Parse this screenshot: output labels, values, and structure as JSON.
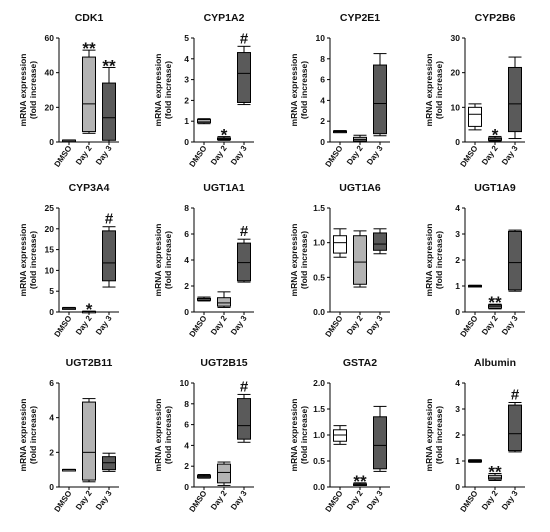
{
  "chart_data": [
    {
      "type": "box",
      "title": "CDK1",
      "ylabel": "mRNA expression\n(fold increase)",
      "categories": [
        "DMSO",
        "Day 2",
        "Day 3"
      ],
      "ylim": [
        0,
        60
      ],
      "yticks": [
        0,
        20,
        40,
        60
      ],
      "boxes": [
        {
          "min": 0.7,
          "q1": 0.8,
          "median": 1,
          "q3": 1.1,
          "max": 1.2
        },
        {
          "min": 5,
          "q1": 6,
          "median": 22,
          "q3": 49,
          "max": 53
        },
        {
          "min": 0,
          "q1": 1,
          "median": 14,
          "q3": 34,
          "max": 43
        }
      ],
      "fills": [
        "#ffffff",
        "#b3b3b3",
        "#5a5a5a"
      ],
      "annotations": [
        "",
        "**",
        "**"
      ]
    },
    {
      "type": "box",
      "title": "CYP1A2",
      "ylabel": "mRNA expression\n(fold increase)",
      "categories": [
        "DMSO",
        "Day 2",
        "Day 3"
      ],
      "ylim": [
        0,
        5
      ],
      "yticks": [
        0,
        1,
        2,
        3,
        4,
        5
      ],
      "boxes": [
        {
          "min": 0.88,
          "q1": 0.93,
          "median": 1.0,
          "q3": 1.08,
          "max": 1.12
        },
        {
          "min": 0.08,
          "q1": 0.12,
          "median": 0.16,
          "q3": 0.2,
          "max": 0.26
        },
        {
          "min": 1.8,
          "q1": 1.9,
          "median": 3.3,
          "q3": 4.3,
          "max": 4.6
        }
      ],
      "fills": [
        "#ffffff",
        "#b3b3b3",
        "#5a5a5a"
      ],
      "annotations": [
        "",
        "*",
        "#"
      ]
    },
    {
      "type": "box",
      "title": "CYP2E1",
      "ylabel": "mRNA expression\n(fold increase)",
      "categories": [
        "DMSO",
        "Day 2",
        "Day 3"
      ],
      "ylim": [
        0,
        10
      ],
      "yticks": [
        0,
        2,
        4,
        6,
        8,
        10
      ],
      "boxes": [
        {
          "min": 0.9,
          "q1": 0.95,
          "median": 1.0,
          "q3": 1.05,
          "max": 1.1
        },
        {
          "min": 0.05,
          "q1": 0.1,
          "median": 0.25,
          "q3": 0.45,
          "max": 0.65
        },
        {
          "min": 0.6,
          "q1": 0.8,
          "median": 3.7,
          "q3": 7.4,
          "max": 8.5
        }
      ],
      "fills": [
        "#ffffff",
        "#b3b3b3",
        "#5a5a5a"
      ],
      "annotations": [
        "",
        "",
        ""
      ]
    },
    {
      "type": "box",
      "title": "CYP2B6",
      "ylabel": "mRNA expression\n(fold increase)",
      "categories": [
        "DMSO",
        "Day 2",
        "Day 3"
      ],
      "ylim": [
        0,
        30
      ],
      "yticks": [
        0,
        10,
        20,
        30
      ],
      "boxes": [
        {
          "min": 3.5,
          "q1": 4.5,
          "median": 8,
          "q3": 10,
          "max": 11
        },
        {
          "min": 0.3,
          "q1": 0.5,
          "median": 0.9,
          "q3": 1.2,
          "max": 1.6
        },
        {
          "min": 1,
          "q1": 3,
          "median": 11,
          "q3": 21.5,
          "max": 24.5
        }
      ],
      "fills": [
        "#ffffff",
        "#b3b3b3",
        "#5a5a5a"
      ],
      "annotations": [
        "",
        "*",
        ""
      ]
    },
    {
      "type": "box",
      "title": "CYP3A4",
      "ylabel": "mRNA expression\n(fold increase)",
      "categories": [
        "DMSO",
        "Day 2",
        "Day 3"
      ],
      "ylim": [
        0,
        25
      ],
      "yticks": [
        0,
        5,
        10,
        15,
        20,
        25
      ],
      "boxes": [
        {
          "min": 0.7,
          "q1": 0.8,
          "median": 0.9,
          "q3": 1.0,
          "max": 1.1
        },
        {
          "min": 0.05,
          "q1": 0.08,
          "median": 0.12,
          "q3": 0.16,
          "max": 0.2
        },
        {
          "min": 6,
          "q1": 7.5,
          "median": 11.8,
          "q3": 19.5,
          "max": 20.5
        }
      ],
      "fills": [
        "#ffffff",
        "#b3b3b3",
        "#5a5a5a"
      ],
      "annotations": [
        "",
        "*",
        "#"
      ]
    },
    {
      "type": "box",
      "title": "UGT1A1",
      "ylabel": "mRNA expression\n(fold increase)",
      "categories": [
        "DMSO",
        "Day 2",
        "Day 3"
      ],
      "ylim": [
        0,
        8
      ],
      "yticks": [
        0,
        2,
        4,
        6,
        8
      ],
      "boxes": [
        {
          "min": 0.85,
          "q1": 0.9,
          "median": 1.0,
          "q3": 1.05,
          "max": 1.15
        },
        {
          "min": 0.35,
          "q1": 0.45,
          "median": 0.7,
          "q3": 1.1,
          "max": 1.55
        },
        {
          "min": 2.3,
          "q1": 2.4,
          "median": 3.8,
          "q3": 5.3,
          "max": 5.6
        }
      ],
      "fills": [
        "#ffffff",
        "#b3b3b3",
        "#5a5a5a"
      ],
      "annotations": [
        "",
        "",
        "#"
      ]
    },
    {
      "type": "box",
      "title": "UGT1A6",
      "ylabel": "mRNA expression\n(fold increase)",
      "categories": [
        "DMSO",
        "Day 2",
        "Day 3"
      ],
      "ylim": [
        0,
        1.5
      ],
      "yticks": [
        0.0,
        0.5,
        1.0,
        1.5
      ],
      "boxes": [
        {
          "min": 0.79,
          "q1": 0.85,
          "median": 1.0,
          "q3": 1.1,
          "max": 1.2
        },
        {
          "min": 0.36,
          "q1": 0.4,
          "median": 0.72,
          "q3": 1.1,
          "max": 1.17
        },
        {
          "min": 0.84,
          "q1": 0.89,
          "median": 0.98,
          "q3": 1.14,
          "max": 1.2
        }
      ],
      "fills": [
        "#ffffff",
        "#b3b3b3",
        "#5a5a5a"
      ],
      "annotations": [
        "",
        "",
        ""
      ]
    },
    {
      "type": "box",
      "title": "UGT1A9",
      "ylabel": "mRNA expression\n(fold increase)",
      "categories": [
        "DMSO",
        "Day 2",
        "Day 3"
      ],
      "ylim": [
        0,
        4
      ],
      "yticks": [
        0,
        1,
        2,
        3,
        4
      ],
      "boxes": [
        {
          "min": 0.97,
          "q1": 0.98,
          "median": 1.0,
          "q3": 1.02,
          "max": 1.03
        },
        {
          "min": 0.12,
          "q1": 0.15,
          "median": 0.22,
          "q3": 0.27,
          "max": 0.3
        },
        {
          "min": 0.8,
          "q1": 0.85,
          "median": 1.9,
          "q3": 3.1,
          "max": 3.15
        }
      ],
      "fills": [
        "#ffffff",
        "#b3b3b3",
        "#5a5a5a"
      ],
      "annotations": [
        "",
        "**",
        ""
      ]
    },
    {
      "type": "box",
      "title": "UGT2B11",
      "ylabel": "mRNA expression\n(fold increase)",
      "categories": [
        "DMSO",
        "Day 2",
        "Day 3"
      ],
      "ylim": [
        0,
        6
      ],
      "yticks": [
        0,
        2,
        4,
        6
      ],
      "boxes": [
        {
          "min": 0.98,
          "q1": 0.99,
          "median": 1.0,
          "q3": 1.01,
          "max": 1.02
        },
        {
          "min": 0.3,
          "q1": 0.4,
          "median": 2,
          "q3": 4.9,
          "max": 5.1
        },
        {
          "min": 0.9,
          "q1": 1,
          "median": 1.4,
          "q3": 1.75,
          "max": 1.95
        }
      ],
      "fills": [
        "#ffffff",
        "#b3b3b3",
        "#5a5a5a"
      ],
      "annotations": [
        "",
        "",
        ""
      ]
    },
    {
      "type": "box",
      "title": "UGT2B15",
      "ylabel": "mRNA expression\n(fold increase)",
      "categories": [
        "DMSO",
        "Day 2",
        "Day 3"
      ],
      "ylim": [
        0,
        10
      ],
      "yticks": [
        0,
        2,
        4,
        6,
        8,
        10
      ],
      "boxes": [
        {
          "min": 0.85,
          "q1": 0.9,
          "median": 1.0,
          "q3": 1.1,
          "max": 1.2
        },
        {
          "min": 0.15,
          "q1": 0.4,
          "median": 1.4,
          "q3": 2.2,
          "max": 2.4
        },
        {
          "min": 4.3,
          "q1": 4.6,
          "median": 5.9,
          "q3": 8.5,
          "max": 8.9
        }
      ],
      "fills": [
        "#ffffff",
        "#b3b3b3",
        "#5a5a5a"
      ],
      "annotations": [
        "",
        "",
        "#"
      ]
    },
    {
      "type": "box",
      "title": "GSTA2",
      "ylabel": "mRNA expression\n(fold increase)",
      "categories": [
        "DMSO",
        "Day 2",
        "Day 3"
      ],
      "ylim": [
        0,
        2
      ],
      "yticks": [
        0.0,
        0.5,
        1.0,
        1.5,
        2.0
      ],
      "boxes": [
        {
          "min": 0.82,
          "q1": 0.88,
          "median": 1.0,
          "q3": 1.1,
          "max": 1.18
        },
        {
          "min": 0.03,
          "q1": 0.04,
          "median": 0.05,
          "q3": 0.06,
          "max": 0.08
        },
        {
          "min": 0.3,
          "q1": 0.35,
          "median": 0.8,
          "q3": 1.35,
          "max": 1.55
        }
      ],
      "fills": [
        "#ffffff",
        "#b3b3b3",
        "#5a5a5a"
      ],
      "annotations": [
        "",
        "**",
        ""
      ]
    },
    {
      "type": "box",
      "title": "Albumin",
      "ylabel": "mRNA expression\n(fold increase)",
      "categories": [
        "DMSO",
        "Day 2",
        "Day 3"
      ],
      "ylim": [
        0,
        4
      ],
      "yticks": [
        0,
        1,
        2,
        3,
        4
      ],
      "boxes": [
        {
          "min": 0.95,
          "q1": 0.97,
          "median": 1.0,
          "q3": 1.03,
          "max": 1.05
        },
        {
          "min": 0.25,
          "q1": 0.3,
          "median": 0.35,
          "q3": 0.45,
          "max": 0.52
        },
        {
          "min": 1.35,
          "q1": 1.4,
          "median": 2.05,
          "q3": 3.15,
          "max": 3.25
        }
      ],
      "fills": [
        "#ffffff",
        "#b3b3b3",
        "#5a5a5a"
      ],
      "annotations": [
        "",
        "**",
        "#"
      ]
    }
  ]
}
